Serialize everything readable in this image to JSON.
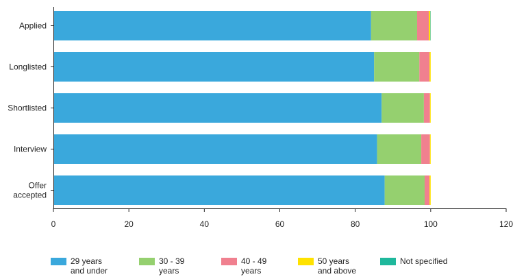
{
  "chart_data": {
    "type": "bar",
    "orientation": "horizontal",
    "stacked": true,
    "categories": [
      "Applied",
      "Longlisted",
      "Shortlisted",
      "Interview",
      "Offer\naccepted"
    ],
    "series": [
      {
        "name": "29 years\nand under",
        "color": "#3aa8dc",
        "values": [
          84.2,
          85.0,
          87.0,
          85.8,
          87.8
        ]
      },
      {
        "name": "30 - 39\nyears",
        "color": "#95d06f",
        "values": [
          12.2,
          12.0,
          11.2,
          11.7,
          10.6
        ]
      },
      {
        "name": "40 - 49\nyears",
        "color": "#f0808f",
        "values": [
          3.1,
          2.7,
          1.6,
          2.3,
          1.3
        ]
      },
      {
        "name": "50 years\nand above",
        "color": "#ffe200",
        "values": [
          0.4,
          0.3,
          0.2,
          0.2,
          0.3
        ]
      },
      {
        "name": "Not specified",
        "color": "#1fb89c",
        "values": [
          0.1,
          0.0,
          0.0,
          0.0,
          0.0
        ]
      }
    ],
    "xlim": [
      0,
      120
    ],
    "xticks": [
      "0",
      "20",
      "40",
      "60",
      "80",
      "100",
      "120"
    ],
    "legend_position": "bottom",
    "grid": false
  }
}
